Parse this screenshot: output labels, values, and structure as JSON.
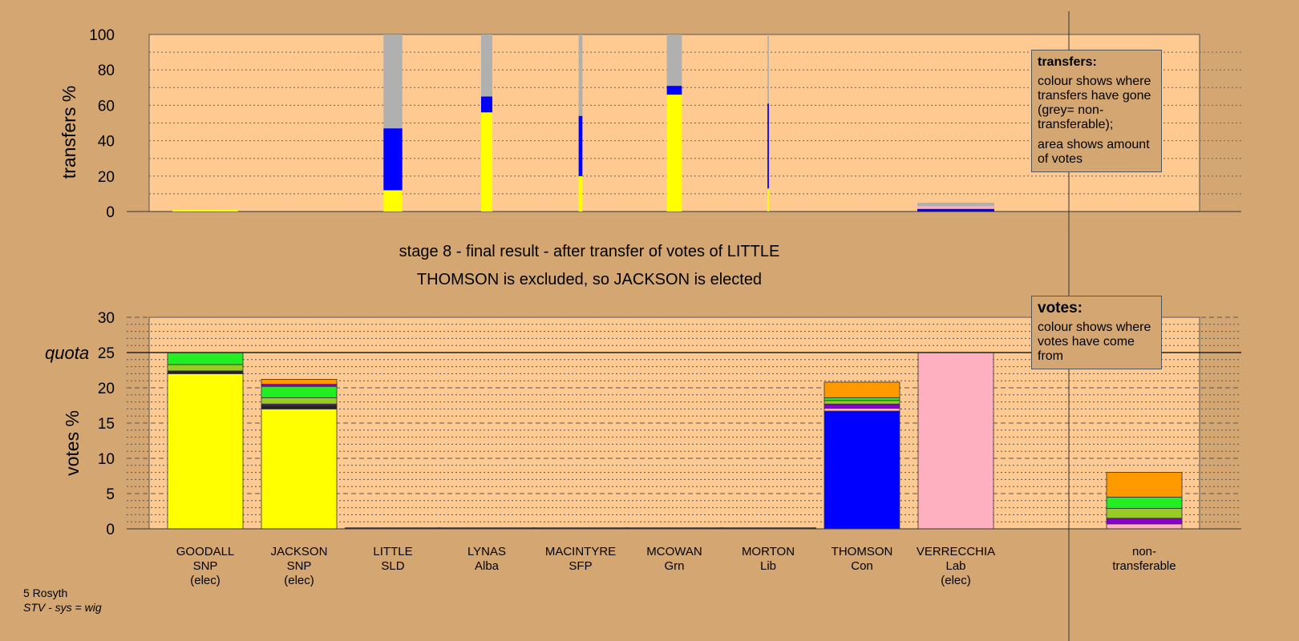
{
  "title": "stage 8 - final result - after transfer of votes of LITTLE",
  "subtitle": "THOMSON is excluded, so JACKSON is elected",
  "footer": {
    "ward": "5 Rosyth",
    "system": "STV - sys = wig"
  },
  "legend_transfers": {
    "heading": "transfers:",
    "text1": "colour shows where transfers have gone (grey= non-transferable);",
    "text2": "area shows amount of votes"
  },
  "legend_votes": {
    "heading": "votes:",
    "text1": "colour shows where votes have come from"
  },
  "colors": {
    "background": "#d4a772",
    "plot_bg": "#ffc992",
    "SNP": "#ffff00",
    "Con": "#0000ff",
    "Lab": "#ffb0c0",
    "Lib": "#ff9900",
    "Grn": "#22ee22",
    "Alba": "#99cc22",
    "SFP": "#8800cc",
    "SLD": "#222222",
    "nontransferable": "#b0b0b0"
  },
  "chart_data": [
    {
      "type": "bar",
      "name": "transfers",
      "ylabel": "transfers %",
      "ylim": [
        0,
        100
      ],
      "yticks": [
        0,
        20,
        40,
        60,
        80,
        100
      ],
      "categories": [
        "GOODALL",
        "JACKSON",
        "LITTLE",
        "LYNAS",
        "MACINTYRE",
        "MCOWAN",
        "MORTON",
        "THOMSON",
        "VERRECCHIA",
        "non-transferable"
      ],
      "columns": [
        {
          "candidate": "GOODALL",
          "width": 0.7,
          "segments": [
            {
              "color": "SNP",
              "value": 1
            }
          ]
        },
        {
          "candidate": "LITTLE",
          "width": 0.2,
          "segments": [
            {
              "color": "SNP",
              "value": 12
            },
            {
              "color": "Con",
              "value": 35
            },
            {
              "color": "nontransferable",
              "value": 53
            }
          ]
        },
        {
          "candidate": "LYNAS",
          "width": 0.12,
          "segments": [
            {
              "color": "SNP",
              "value": 56
            },
            {
              "color": "Con",
              "value": 9
            },
            {
              "color": "nontransferable",
              "value": 35
            }
          ]
        },
        {
          "candidate": "MACINTYRE",
          "width": 0.04,
          "segments": [
            {
              "color": "SNP",
              "value": 20
            },
            {
              "color": "Con",
              "value": 34
            },
            {
              "color": "nontransferable",
              "value": 46
            }
          ]
        },
        {
          "candidate": "MCOWAN",
          "width": 0.16,
          "segments": [
            {
              "color": "SNP",
              "value": 66
            },
            {
              "color": "Con",
              "value": 5
            },
            {
              "color": "nontransferable",
              "value": 29
            }
          ]
        },
        {
          "candidate": "MORTON",
          "width": 0.015,
          "segments": [
            {
              "color": "SNP",
              "value": 13
            },
            {
              "color": "Con",
              "value": 48
            },
            {
              "color": "nontransferable",
              "value": 39
            }
          ]
        },
        {
          "candidate": "VERRECCHIA",
          "width": 0.82,
          "segments": [
            {
              "color": "Con",
              "value": 1.5
            },
            {
              "color": "Lab",
              "value": 1.5
            },
            {
              "color": "nontransferable",
              "value": 2
            }
          ]
        }
      ]
    },
    {
      "type": "bar",
      "name": "votes",
      "ylabel": "votes %",
      "ylim": [
        0,
        30
      ],
      "yticks": [
        0,
        5,
        10,
        15,
        20,
        25,
        30
      ],
      "quota": 25,
      "quota_label": "quota",
      "categories": [
        {
          "name": "GOODALL",
          "party": "SNP",
          "status": "(elec)"
        },
        {
          "name": "JACKSON",
          "party": "SNP",
          "status": "(elec)"
        },
        {
          "name": "LITTLE",
          "party": "SLD",
          "status": ""
        },
        {
          "name": "LYNAS",
          "party": "Alba",
          "status": ""
        },
        {
          "name": "MACINTYRE",
          "party": "SFP",
          "status": ""
        },
        {
          "name": "MCOWAN",
          "party": "Grn",
          "status": ""
        },
        {
          "name": "MORTON",
          "party": "Lib",
          "status": ""
        },
        {
          "name": "THOMSON",
          "party": "Con",
          "status": ""
        },
        {
          "name": "VERRECCHIA",
          "party": "Lab",
          "status": "(elec)"
        },
        {
          "name": "non-",
          "party": "transferable",
          "status": ""
        }
      ],
      "stacks": [
        [
          {
            "color": "SNP",
            "value": 22
          },
          {
            "color": "SLD",
            "value": 0.4
          },
          {
            "color": "Alba",
            "value": 0.9
          },
          {
            "color": "Grn",
            "value": 1.7
          }
        ],
        [
          {
            "color": "SNP",
            "value": 17
          },
          {
            "color": "SLD",
            "value": 0.5
          },
          {
            "color": "SFP",
            "value": 0.2
          },
          {
            "color": "Alba",
            "value": 0.9
          },
          {
            "color": "Grn",
            "value": 1.6
          },
          {
            "color": "SFP",
            "value": 0.3
          },
          {
            "color": "Lib",
            "value": 0.7
          }
        ],
        [],
        [],
        [],
        [],
        [],
        [
          {
            "color": "Con",
            "value": 16.7
          },
          {
            "color": "Lab",
            "value": 0.4
          },
          {
            "color": "SFP",
            "value": 0.6
          },
          {
            "color": "Alba",
            "value": 0.5
          },
          {
            "color": "Grn",
            "value": 0.4
          },
          {
            "color": "Lib",
            "value": 2.2
          }
        ],
        [
          {
            "color": "Lab",
            "value": 25
          }
        ],
        [
          {
            "color": "Lab",
            "value": 0.7
          },
          {
            "color": "SFP",
            "value": 0.8
          },
          {
            "color": "Alba",
            "value": 1.4
          },
          {
            "color": "Grn",
            "value": 1.6
          },
          {
            "color": "Lib",
            "value": 3.5
          }
        ]
      ]
    }
  ]
}
